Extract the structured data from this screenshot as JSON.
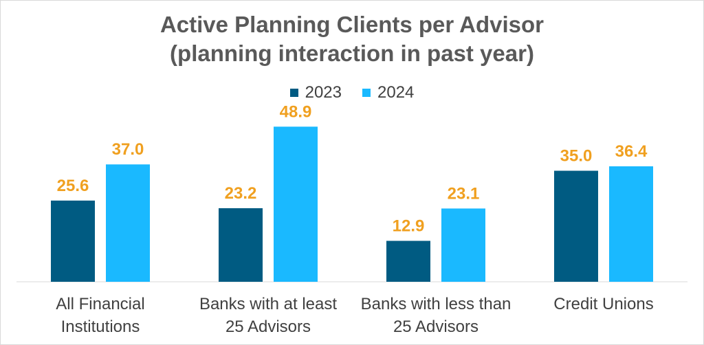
{
  "chart_data": {
    "type": "bar",
    "title": "Active Planning Clients per Advisor",
    "subtitle": "(planning interaction in past year)",
    "categories": [
      [
        "All Financial",
        "Institutions"
      ],
      [
        "Banks with at least",
        "25 Advisors"
      ],
      [
        "Banks with less than",
        "25 Advisors"
      ],
      [
        "Credit Unions"
      ]
    ],
    "series": [
      {
        "name": "2023",
        "color": "#005b82",
        "values": [
          25.6,
          23.2,
          12.9,
          35.0
        ],
        "labels": [
          "25.6",
          "23.2",
          "12.9",
          "35.0"
        ]
      },
      {
        "name": "2024",
        "color": "#1ab9ff",
        "values": [
          37.0,
          48.9,
          23.1,
          36.4
        ],
        "labels": [
          "37.0",
          "48.9",
          "23.1",
          "36.4"
        ]
      }
    ],
    "label_color": "#f0a020",
    "ylim": [
      0,
      52
    ],
    "legend": "top-center",
    "grid": false
  }
}
